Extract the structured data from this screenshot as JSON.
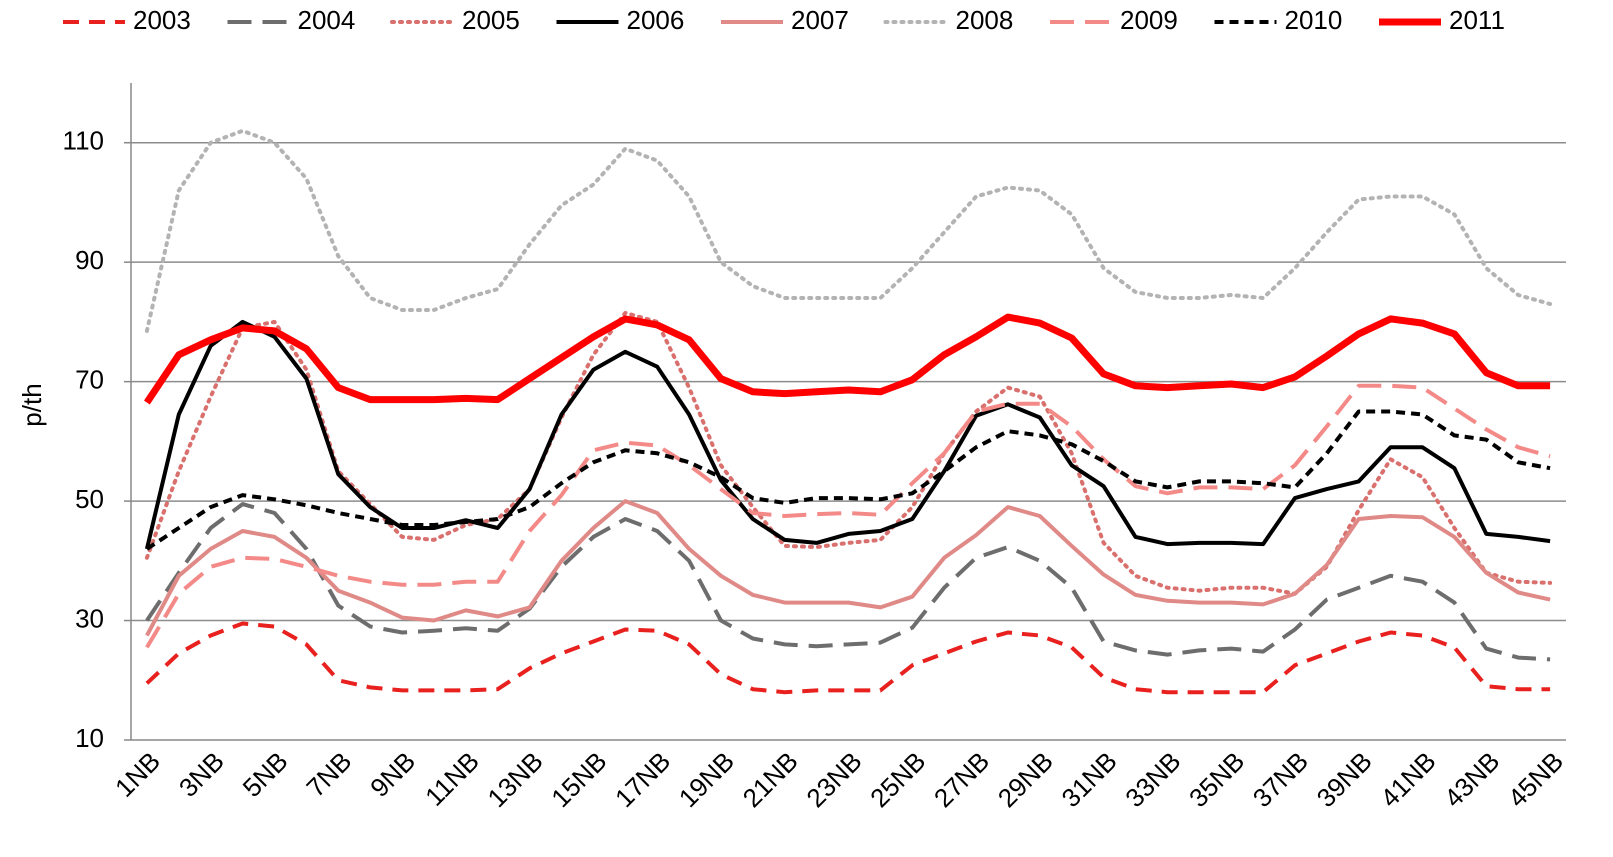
{
  "chart_data": {
    "type": "line",
    "ylabel": "p/th",
    "categories": [
      "1NB",
      null,
      "3NB",
      null,
      "5NB",
      null,
      "7NB",
      null,
      "9NB",
      null,
      "11NB",
      null,
      "13NB",
      null,
      "15NB",
      null,
      "17NB",
      null,
      "19NB",
      null,
      "21NB",
      null,
      "23NB",
      null,
      "25NB",
      null,
      "27NB",
      null,
      "29NB",
      null,
      "31NB",
      null,
      "33NB",
      null,
      "35NB",
      null,
      "37NB",
      null,
      "39NB",
      null,
      "41NB",
      null,
      "43NB",
      null,
      "45NB"
    ],
    "ylim": [
      10,
      120
    ],
    "yticks": [
      10,
      30,
      50,
      70,
      90,
      110
    ],
    "grid": true,
    "legend": "top",
    "series": [
      {
        "name": "2003",
        "color": "#e8201e",
        "style": "dashed",
        "width": "normal",
        "values": [
          19.5,
          24.5,
          27.5,
          29.5,
          29,
          26,
          20,
          18.8,
          18.3,
          18.3,
          18.3,
          18.5,
          22,
          24.5,
          26.5,
          28.5,
          28.3,
          26,
          21,
          18.5,
          18,
          18.3,
          18.3,
          18.3,
          22.5,
          24.5,
          26.5,
          28,
          27.5,
          25.5,
          20.5,
          18.5,
          18,
          18,
          18,
          18,
          22.5,
          24.5,
          26.5,
          28,
          27.5,
          25.5,
          19,
          18.5,
          18.5
        ]
      },
      {
        "name": "2004",
        "color": "#6d6d6d",
        "style": "long-dashed",
        "width": "normal",
        "values": [
          30,
          38,
          45.5,
          49.5,
          48,
          42,
          32.5,
          29,
          28,
          28.3,
          28.7,
          28.3,
          32,
          39,
          44,
          47,
          45,
          40,
          30,
          27,
          26,
          25.7,
          26,
          26.3,
          28.8,
          35.5,
          40.5,
          42.3,
          40,
          35.5,
          26.5,
          25,
          24.3,
          25,
          25.3,
          24.8,
          28.5,
          33.5,
          35.5,
          37.5,
          36.5,
          33,
          25.3,
          23.8,
          23.5
        ]
      },
      {
        "name": "2005",
        "color": "#d9706d",
        "style": "dotted",
        "width": "normal",
        "values": [
          40.5,
          55,
          67.5,
          79,
          80,
          72,
          55,
          49.5,
          44,
          43.5,
          46,
          47,
          52,
          64,
          74.5,
          81.5,
          80,
          69,
          56,
          49,
          42.5,
          42.3,
          43,
          43.5,
          49,
          58,
          65,
          69,
          67.5,
          58,
          43,
          37.5,
          35.5,
          35,
          35.5,
          35.5,
          34.5,
          39,
          48.5,
          57,
          54,
          45.5,
          38,
          36.5,
          36.3
        ]
      },
      {
        "name": "2006",
        "color": "#000000",
        "style": "solid",
        "width": "normal",
        "values": [
          42,
          64.5,
          76,
          80,
          77.5,
          70.5,
          54.5,
          49,
          45.5,
          45.5,
          46.8,
          45.5,
          52,
          64.5,
          72,
          75,
          72.5,
          64.5,
          53.5,
          47,
          43.5,
          43,
          44.5,
          45,
          47,
          55,
          64.3,
          66.2,
          64,
          56,
          52.5,
          44,
          42.8,
          43,
          43,
          42.8,
          50.5,
          52,
          53.3,
          59,
          59,
          55.5,
          44.5,
          44,
          43.3
        ]
      },
      {
        "name": "2007",
        "color": "#e08a88",
        "style": "solid",
        "width": "normal",
        "values": [
          27.5,
          37.5,
          42,
          45,
          44,
          40.5,
          35,
          33,
          30.5,
          30,
          31.7,
          30.7,
          32.2,
          40,
          45.5,
          50,
          48,
          42,
          37.5,
          34.3,
          33,
          33,
          33,
          32.2,
          34,
          40.5,
          44.3,
          49,
          47.5,
          42.5,
          37.7,
          34.3,
          33.3,
          33,
          33,
          32.7,
          34.5,
          39.3,
          47,
          47.5,
          47.3,
          44,
          38,
          34.7,
          33.5
        ]
      },
      {
        "name": "2008",
        "color": "#b3b3b3",
        "style": "dotted",
        "width": "normal",
        "values": [
          78.5,
          102,
          110,
          112,
          110,
          104,
          91,
          84,
          82,
          82,
          84,
          85.5,
          93,
          99.5,
          103,
          109,
          107,
          101,
          90,
          86,
          84,
          84,
          84,
          84,
          89,
          95,
          101,
          102.5,
          102,
          98,
          89,
          85,
          84,
          84,
          84.5,
          84,
          89,
          95,
          100.5,
          101,
          101,
          98,
          89,
          84.5,
          83
        ]
      },
      {
        "name": "2009",
        "color": "#f48a88",
        "style": "long-dashed",
        "width": "normal",
        "values": [
          25.5,
          34.5,
          39,
          40.5,
          40.3,
          39,
          37.5,
          36.5,
          36,
          36,
          36.5,
          36.5,
          45,
          51,
          58.5,
          59.8,
          59.3,
          56,
          52,
          48,
          47.5,
          47.8,
          48,
          47.7,
          53,
          58,
          65,
          66.3,
          66.3,
          62.5,
          57,
          52.5,
          51.3,
          52.3,
          52.3,
          52,
          56,
          62.5,
          69.3,
          69.3,
          69,
          65.5,
          62,
          59,
          57.5
        ]
      },
      {
        "name": "2010",
        "color": "#000000",
        "style": "short-dashed",
        "width": "normal",
        "values": [
          42,
          45.5,
          49,
          51,
          50.3,
          49.3,
          48,
          47,
          46,
          46,
          46.5,
          47,
          49,
          53,
          56.5,
          58.5,
          58,
          56.5,
          54,
          50.5,
          49.7,
          50.5,
          50.5,
          50.3,
          51.3,
          55,
          59,
          61.7,
          61,
          59.5,
          56.7,
          53.3,
          52.3,
          53.3,
          53.3,
          53,
          52.3,
          58,
          65,
          65,
          64.5,
          61,
          60.3,
          56.5,
          55.5
        ]
      },
      {
        "name": "2011",
        "color": "#ff0000",
        "style": "solid",
        "width": "thick",
        "values": [
          66.5,
          74.5,
          77,
          79,
          78.5,
          75.5,
          69,
          67,
          67,
          67,
          67.2,
          67,
          70.5,
          74,
          77.5,
          80.5,
          79.5,
          77,
          70.5,
          68.3,
          68,
          68.3,
          68.6,
          68.3,
          70.3,
          74.5,
          77.5,
          80.8,
          79.8,
          77.3,
          71.3,
          69.3,
          69,
          69.3,
          69.6,
          69,
          70.8,
          74.3,
          78,
          80.5,
          79.8,
          78,
          71.5,
          69.3,
          69.3
        ]
      }
    ]
  }
}
